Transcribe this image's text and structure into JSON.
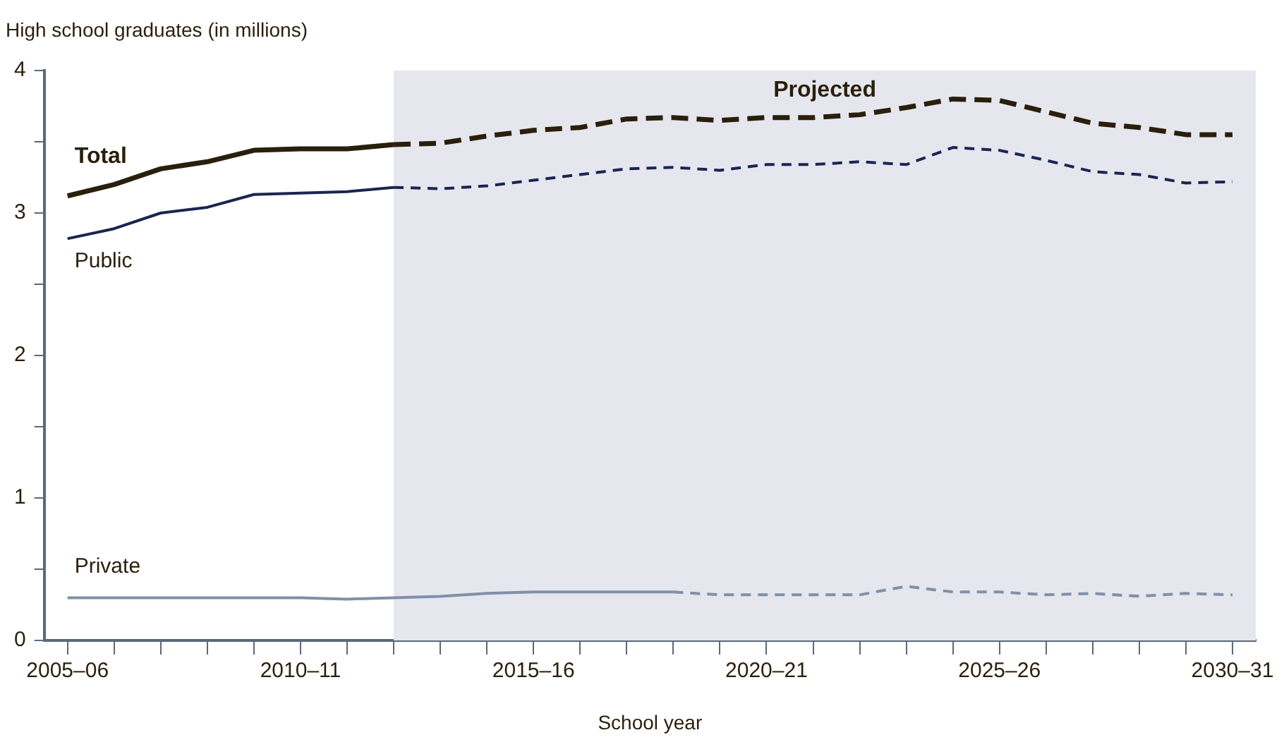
{
  "chart_data": {
    "type": "line",
    "ylabel": "High school graduates (in millions)",
    "xlabel": "School year",
    "categories": [
      "2005–06",
      null,
      null,
      null,
      null,
      "2010–11",
      null,
      null,
      null,
      null,
      "2015–16",
      null,
      null,
      null,
      null,
      "2020–21",
      null,
      null,
      null,
      null,
      "2025–26",
      null,
      null,
      null,
      null,
      "2030–31"
    ],
    "ylim": [
      0,
      4
    ],
    "yticks": [
      0,
      {
        "value": 0.5,
        "label": null
      },
      1,
      {
        "value": 1.5,
        "label": null
      },
      2,
      {
        "value": 2.5,
        "label": null
      },
      3,
      {
        "value": 3.5,
        "label": null
      },
      4
    ],
    "grid": false,
    "legend": false,
    "marker": "none",
    "annotations": [
      "Projected"
    ],
    "series": [
      {
        "name": "Total",
        "color": "#2a1f0c",
        "line_style": "solid",
        "values": [
          3.12,
          3.2,
          3.31,
          3.36,
          3.44,
          3.45,
          3.45,
          3.48,
          null,
          null,
          null,
          null,
          null,
          null,
          null,
          null,
          null,
          null,
          null,
          null,
          null,
          null,
          null,
          null,
          null,
          null
        ]
      },
      {
        "color": "#2a1f0c",
        "line_style": "dashed",
        "values": [
          null,
          null,
          null,
          null,
          null,
          null,
          null,
          3.48,
          3.49,
          3.54,
          3.58,
          3.6,
          3.66,
          3.67,
          3.65,
          3.67,
          3.67,
          3.69,
          3.74,
          3.8,
          3.79,
          3.71,
          3.63,
          3.6,
          3.55,
          3.55
        ]
      },
      {
        "name": "Public",
        "color": "#1a2550",
        "line_style": "solid",
        "values": [
          2.82,
          2.89,
          3.0,
          3.04,
          3.13,
          3.14,
          3.15,
          3.18,
          null,
          null,
          null,
          null,
          null,
          null,
          null,
          null,
          null,
          null,
          null,
          null,
          null,
          null,
          null,
          null,
          null,
          null
        ]
      },
      {
        "color": "#1a2550",
        "line_style": "dashed",
        "values": [
          null,
          null,
          null,
          null,
          null,
          null,
          null,
          3.18,
          3.17,
          3.19,
          3.23,
          3.27,
          3.31,
          3.32,
          3.3,
          3.34,
          3.34,
          3.36,
          3.34,
          3.46,
          3.44,
          3.37,
          3.29,
          3.27,
          3.21,
          3.22
        ]
      },
      {
        "name": "Private",
        "color": "#8090a8",
        "line_style": "solid",
        "values": [
          0.3,
          0.3,
          0.3,
          0.3,
          0.3,
          0.3,
          0.29,
          0.3,
          0.31,
          0.33,
          0.34,
          0.34,
          0.34,
          0.34,
          null,
          null,
          null,
          null,
          null,
          null,
          null,
          null,
          null,
          null,
          null,
          null
        ]
      },
      {
        "color": "#8090a8",
        "line_style": "dashed",
        "values": [
          null,
          null,
          null,
          null,
          null,
          null,
          null,
          null,
          null,
          null,
          null,
          null,
          null,
          0.34,
          0.32,
          0.32,
          0.32,
          0.32,
          0.38,
          0.34,
          0.34,
          0.32,
          0.33,
          0.31,
          0.33,
          0.32
        ]
      }
    ]
  }
}
